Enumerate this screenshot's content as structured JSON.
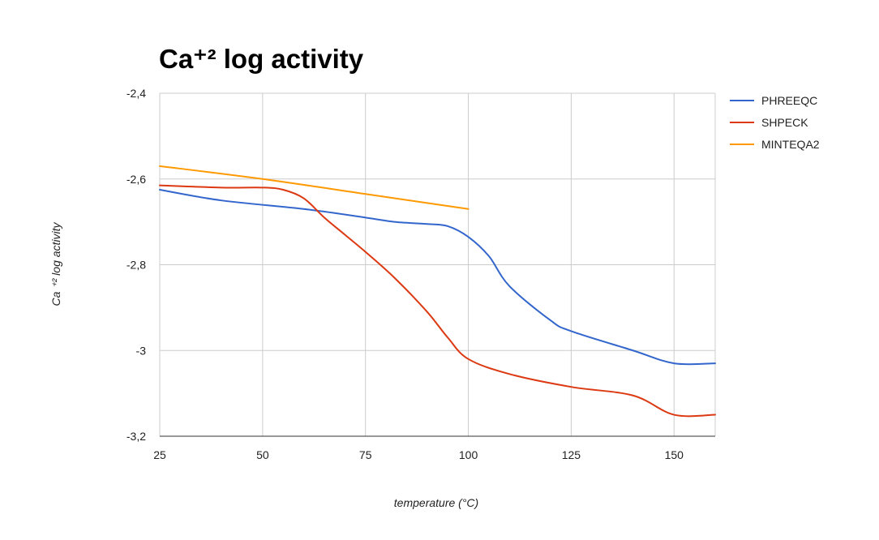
{
  "chart_data": {
    "type": "line",
    "title": "Ca⁺² log activity",
    "xlabel": "temperature (°C)",
    "ylabel": "Ca ⁺² log activity",
    "xlim": [
      25,
      160
    ],
    "ylim": [
      -3.2,
      -2.4
    ],
    "x_ticks": [
      25,
      50,
      75,
      100,
      125,
      150
    ],
    "x_tick_labels": [
      "25",
      "50",
      "75",
      "100",
      "125",
      "150"
    ],
    "y_ticks": [
      -2.4,
      -2.6,
      -2.8,
      -3.0,
      -3.2
    ],
    "y_tick_labels": [
      "-2,4",
      "-2,6",
      "-2,8",
      "-3",
      "-3,2"
    ],
    "grid": true,
    "legend_position": "right",
    "series": [
      {
        "name": "PHREEQC",
        "color": "#3366cc",
        "x": [
          25,
          40,
          60,
          75,
          82,
          90,
          95,
          100,
          105,
          110,
          120,
          125,
          140,
          150,
          160
        ],
        "y": [
          -2.625,
          -2.65,
          -2.67,
          -2.69,
          -2.7,
          -2.705,
          -2.71,
          -2.735,
          -2.78,
          -2.85,
          -2.93,
          -2.955,
          -3.0,
          -3.03,
          -3.03
        ]
      },
      {
        "name": "SHPECK",
        "color": "#dc3912",
        "x": [
          25,
          40,
          50,
          55,
          60,
          65,
          70,
          75,
          82,
          90,
          95,
          100,
          110,
          125,
          140,
          150,
          160
        ],
        "y": [
          -2.615,
          -2.62,
          -2.62,
          -2.625,
          -2.645,
          -2.69,
          -2.73,
          -2.77,
          -2.83,
          -2.91,
          -2.97,
          -3.02,
          -3.055,
          -3.085,
          -3.105,
          -3.15,
          -3.15
        ]
      },
      {
        "name": "MINTEQA2",
        "color": "#ff9900",
        "x": [
          25,
          50,
          75,
          100
        ],
        "y": [
          -2.57,
          -2.6,
          -2.635,
          -2.67
        ]
      }
    ]
  }
}
